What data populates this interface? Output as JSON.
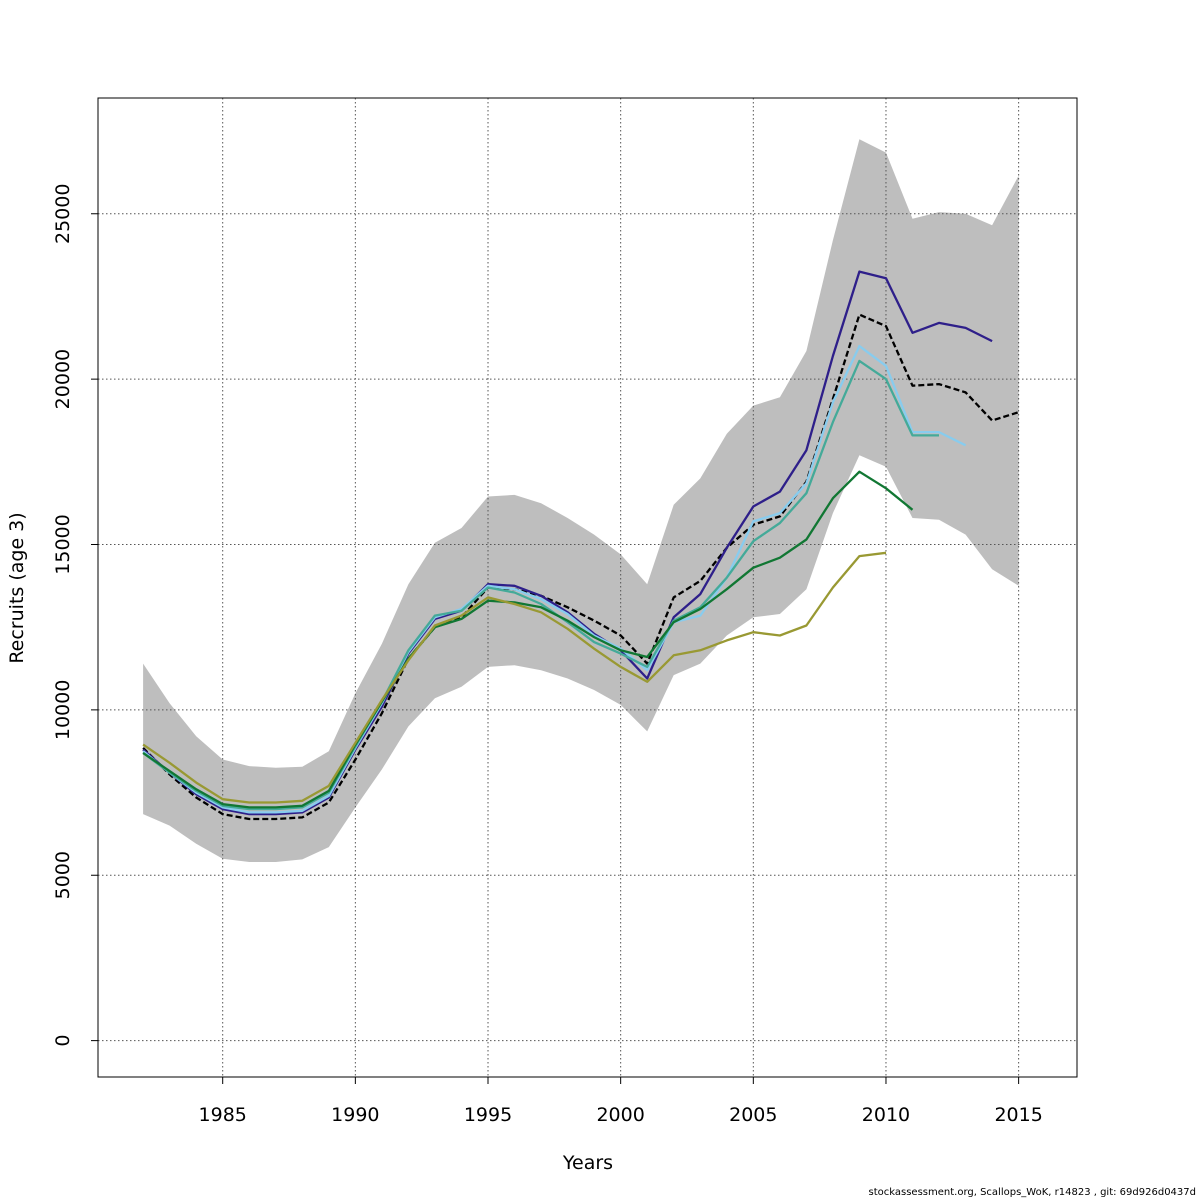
{
  "chart_data": {
    "type": "line",
    "xlabel": "Years",
    "ylabel": "Recruits (age 3)",
    "xlim": [
      1980.3,
      2017.2
    ],
    "ylim": [
      -1100,
      28500
    ],
    "xticks": [
      1985,
      1990,
      1995,
      2000,
      2005,
      2010,
      2015
    ],
    "yticks": [
      0,
      5000,
      10000,
      15000,
      20000,
      25000
    ],
    "grid": true,
    "legend": "none",
    "colors": {
      "band": "#bebebe",
      "gridline": "#555555",
      "frame": "#000000"
    },
    "band": {
      "x": [
        1982,
        1983,
        1984,
        1985,
        1986,
        1987,
        1988,
        1989,
        1990,
        1991,
        1992,
        1993,
        1994,
        1995,
        1996,
        1997,
        1998,
        1999,
        2000,
        2001,
        2002,
        2003,
        2004,
        2005,
        2006,
        2007,
        2008,
        2009,
        2010,
        2011,
        2012,
        2013,
        2014,
        2015
      ],
      "upper": [
        11400,
        10200,
        9200,
        8500,
        8300,
        8250,
        8280,
        8750,
        10500,
        12000,
        13800,
        15050,
        15500,
        16450,
        16500,
        16250,
        15800,
        15300,
        14700,
        13800,
        16200,
        17000,
        18350,
        19200,
        19450,
        20850,
        24200,
        27250,
        26850,
        24850,
        25050,
        25000,
        24650,
        26150
      ],
      "lower": [
        6850,
        6500,
        5950,
        5500,
        5400,
        5400,
        5480,
        5850,
        7050,
        8200,
        9500,
        10350,
        10700,
        11300,
        11350,
        11200,
        10950,
        10600,
        10150,
        9350,
        11050,
        11400,
        12250,
        12800,
        12900,
        13650,
        15950,
        17700,
        17350,
        15800,
        15750,
        15300,
        14250,
        13750
      ]
    },
    "series": [
      {
        "color": "#000000",
        "dashed": true,
        "x": [
          1982,
          1983,
          1984,
          1985,
          1986,
          1987,
          1988,
          1989,
          1990,
          1991,
          1992,
          1993,
          1994,
          1995,
          1996,
          1997,
          1998,
          1999,
          2000,
          2001,
          2002,
          2003,
          2004,
          2005,
          2006,
          2007,
          2008,
          2009,
          2010,
          2011,
          2012,
          2013,
          2014,
          2015
        ],
        "values": [
          8850,
          8050,
          7350,
          6850,
          6700,
          6700,
          6750,
          7200,
          8500,
          9900,
          11550,
          12500,
          12800,
          13700,
          13650,
          13450,
          13100,
          12700,
          12250,
          11400,
          13400,
          13900,
          14900,
          15600,
          15850,
          16900,
          19400,
          21950,
          21600,
          19800,
          19850,
          19600,
          18750,
          19000
        ]
      },
      {
        "color": "#2e1f8a",
        "dashed": false,
        "x": [
          1982,
          1983,
          1984,
          1985,
          1986,
          1987,
          1988,
          1989,
          1990,
          1991,
          1992,
          1993,
          1994,
          1995,
          1996,
          1997,
          1998,
          1999,
          2000,
          2001,
          2002,
          2003,
          2004,
          2005,
          2006,
          2007,
          2008,
          2009,
          2010,
          2011,
          2012,
          2013,
          2014
        ],
        "values": [
          8800,
          8100,
          7450,
          7000,
          6850,
          6850,
          6900,
          7350,
          8800,
          10100,
          11700,
          12750,
          13000,
          13800,
          13750,
          13450,
          12950,
          12300,
          11800,
          10950,
          12800,
          13500,
          14900,
          16150,
          16600,
          17850,
          20700,
          23250,
          23050,
          21400,
          21700,
          21550,
          21150
        ]
      },
      {
        "color": "#88ccee",
        "dashed": false,
        "x": [
          1982,
          1983,
          1984,
          1985,
          1986,
          1987,
          1988,
          1989,
          1990,
          1991,
          1992,
          1993,
          1994,
          1995,
          1996,
          1997,
          1998,
          1999,
          2000,
          2001,
          2002,
          2003,
          2004,
          2005,
          2006,
          2007,
          2008,
          2009,
          2010,
          2011,
          2012,
          2013
        ],
        "values": [
          8750,
          8100,
          7500,
          7050,
          6900,
          6900,
          6950,
          7400,
          8850,
          10200,
          11750,
          12800,
          13050,
          13750,
          13650,
          13350,
          12900,
          12250,
          11850,
          11200,
          12650,
          12850,
          14000,
          15700,
          15950,
          16850,
          19300,
          21000,
          20400,
          18400,
          18400,
          18000
        ]
      },
      {
        "color": "#44aa99",
        "dashed": false,
        "x": [
          1982,
          1983,
          1984,
          1985,
          1986,
          1987,
          1988,
          1989,
          1990,
          1991,
          1992,
          1993,
          1994,
          1995,
          1996,
          1997,
          1998,
          1999,
          2000,
          2001,
          2002,
          2003,
          2004,
          2005,
          2006,
          2007,
          2008,
          2009,
          2010,
          2011,
          2012
        ],
        "values": [
          8700,
          8100,
          7550,
          7100,
          7000,
          7000,
          7050,
          7500,
          8900,
          10250,
          11800,
          12850,
          13000,
          13700,
          13550,
          13200,
          12650,
          12050,
          11700,
          11300,
          12700,
          13100,
          14000,
          15100,
          15650,
          16550,
          18700,
          20550,
          20000,
          18300,
          18300
        ]
      },
      {
        "color": "#117733",
        "dashed": false,
        "x": [
          1982,
          1983,
          1984,
          1985,
          1986,
          1987,
          1988,
          1989,
          1990,
          1991,
          1992,
          1993,
          1994,
          1995,
          1996,
          1997,
          1998,
          1999,
          2000,
          2001,
          2002,
          2003,
          2004,
          2005,
          2006,
          2007,
          2008,
          2009,
          2010,
          2011
        ],
        "values": [
          8700,
          8150,
          7600,
          7150,
          7050,
          7050,
          7100,
          7550,
          8950,
          10250,
          11550,
          12500,
          12750,
          13300,
          13250,
          13100,
          12700,
          12200,
          11800,
          11600,
          12650,
          13050,
          13650,
          14300,
          14600,
          15150,
          16400,
          17200,
          16700,
          16050
        ]
      },
      {
        "color": "#999933",
        "dashed": false,
        "x": [
          1982,
          1983,
          1984,
          1985,
          1986,
          1987,
          1988,
          1989,
          1990,
          1991,
          1992,
          1993,
          1994,
          1995,
          1996,
          1997,
          1998,
          1999,
          2000,
          2001,
          2002,
          2003,
          2004,
          2005,
          2006,
          2007,
          2008,
          2009,
          2010
        ],
        "values": [
          8950,
          8400,
          7800,
          7300,
          7200,
          7200,
          7250,
          7700,
          9000,
          10300,
          11500,
          12550,
          12850,
          13400,
          13200,
          12950,
          12450,
          11850,
          11300,
          10850,
          11650,
          11800,
          12100,
          12350,
          12250,
          12550,
          13700,
          14650,
          14750
        ]
      }
    ]
  },
  "footer": {
    "text": "stockassessment.org, Scallops_WoK, r14823 , git: 69d926d0437d"
  }
}
